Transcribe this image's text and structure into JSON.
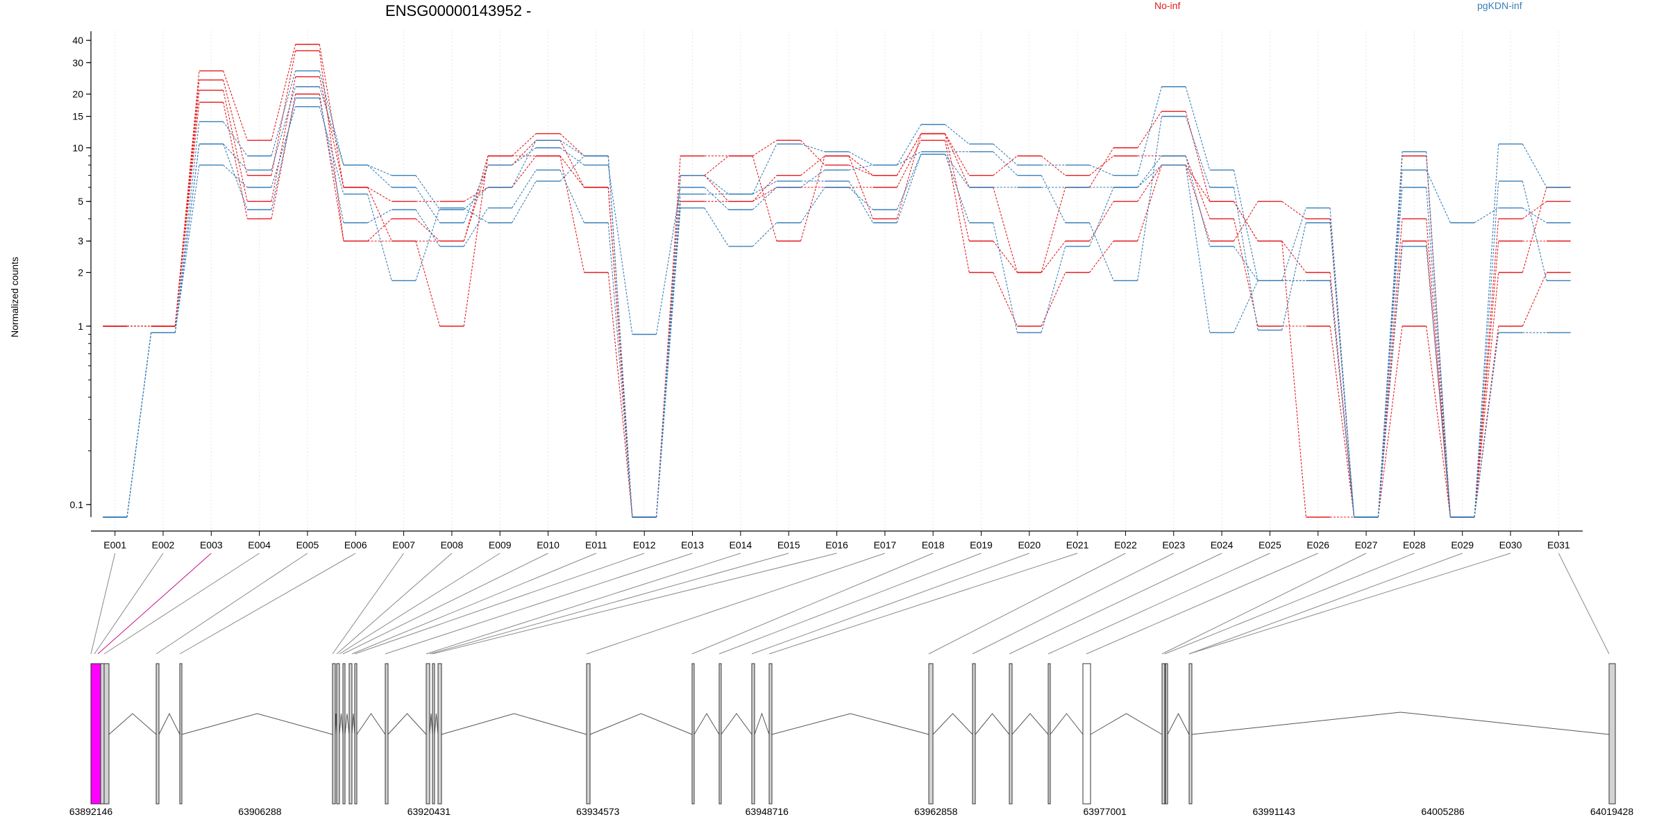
{
  "chart_data": {
    "type": "line",
    "title": "ENSG00000143952 -",
    "ylabel": "Normalized counts",
    "yscale": "log",
    "ylim": [
      0.085,
      45
    ],
    "yticks": [
      0.1,
      1,
      2,
      3,
      5,
      10,
      15,
      20,
      30,
      40
    ],
    "ytick_labels": [
      "0.1",
      "1",
      "2",
      "3",
      "5",
      "10",
      "15",
      "20",
      "30",
      "40"
    ],
    "zero_floor": 0.085,
    "legend": [
      {
        "name": "No-inf",
        "color": "#e41a1c"
      },
      {
        "name": "pgKDN-inf",
        "color": "#377eb8"
      }
    ],
    "grid": "vertical-dotted",
    "categories": [
      "E001",
      "E002",
      "E003",
      "E004",
      "E005",
      "E006",
      "E007",
      "E008",
      "E009",
      "E010",
      "E011",
      "E012",
      "E013",
      "E014",
      "E015",
      "E016",
      "E017",
      "E018",
      "E019",
      "E020",
      "E021",
      "E022",
      "E023",
      "E024",
      "E025",
      "E026",
      "E027",
      "E028",
      "E029",
      "E030",
      "E031"
    ],
    "series": [
      {
        "color": "#e41a1c",
        "values": [
          1,
          1,
          27,
          11,
          38,
          6,
          3,
          1,
          9,
          12,
          9,
          0,
          9,
          9,
          11,
          8,
          7,
          12,
          3,
          2,
          6,
          10,
          16,
          5,
          3,
          2,
          0,
          9,
          0,
          2,
          6
        ]
      },
      {
        "color": "#e41a1c",
        "values": [
          1,
          1,
          24,
          7,
          35,
          3,
          4,
          3,
          8,
          11,
          6,
          0,
          7,
          5,
          7,
          9,
          4,
          12,
          7,
          9,
          7,
          9,
          9,
          4,
          1,
          1,
          0,
          1,
          0,
          4,
          5
        ]
      },
      {
        "color": "#e41a1c",
        "values": [
          1,
          1,
          21,
          5,
          25,
          6,
          5,
          5,
          6,
          9,
          2,
          0,
          5,
          5,
          6,
          6,
          6,
          11,
          2,
          1,
          2,
          3,
          8,
          3,
          5,
          4,
          0,
          3,
          0,
          1,
          2
        ]
      },
      {
        "color": "#e41a1c",
        "values": [
          1,
          1,
          18,
          4,
          20,
          3,
          3,
          3,
          9,
          9,
          6,
          0,
          7,
          9,
          3,
          9,
          7,
          12,
          6,
          2,
          3,
          5,
          8,
          5,
          3,
          0,
          0,
          4,
          0,
          3,
          3
        ]
      },
      {
        "color": "#377eb8",
        "values": [
          0,
          0.92,
          14,
          9,
          27,
          8,
          7,
          4.5,
          6,
          11,
          9,
          0,
          7,
          5.5,
          10.5,
          9.5,
          8,
          13.5,
          10.5,
          8,
          8,
          7,
          22,
          7.5,
          1.8,
          4.6,
          0,
          9.5,
          0,
          10.5,
          6
        ]
      },
      {
        "color": "#377eb8",
        "values": [
          0,
          0.92,
          10.5,
          7.5,
          22,
          8,
          6,
          3.8,
          8,
          10,
          8,
          0.9,
          6,
          4.5,
          6,
          7.5,
          8,
          9.5,
          9.5,
          7,
          3.8,
          1.8,
          15,
          6,
          0.95,
          3.8,
          0,
          7.5,
          3.8,
          4.6,
          3.8
        ]
      },
      {
        "color": "#377eb8",
        "values": [
          0,
          0.92,
          10.5,
          4.5,
          19,
          3.8,
          4.5,
          2.8,
          4.6,
          7.5,
          3.8,
          0,
          4.6,
          2.8,
          3.8,
          6,
          4.5,
          9.2,
          3.8,
          0.92,
          2.8,
          6,
          9,
          2.8,
          1.8,
          1.8,
          0,
          2.8,
          0,
          0.92,
          0.92
        ]
      },
      {
        "color": "#377eb8",
        "values": [
          0,
          0.92,
          8,
          6,
          17,
          5.5,
          1.8,
          4.6,
          3.8,
          6.5,
          9,
          0,
          5.5,
          5.5,
          6.5,
          6.5,
          3.8,
          9.2,
          6,
          6,
          6,
          6,
          8,
          0.92,
          1.8,
          1.8,
          0,
          6,
          0,
          6.5,
          1.8
        ]
      }
    ],
    "gene_model": {
      "coordinates": [
        "63892146",
        "63906288",
        "63920431",
        "63934573",
        "63948716",
        "63962858",
        "63977001",
        "63991143",
        "64005286",
        "64019428"
      ],
      "highlight_color": "#ff00ff",
      "exon_fill": "#d3d3d3"
    }
  }
}
